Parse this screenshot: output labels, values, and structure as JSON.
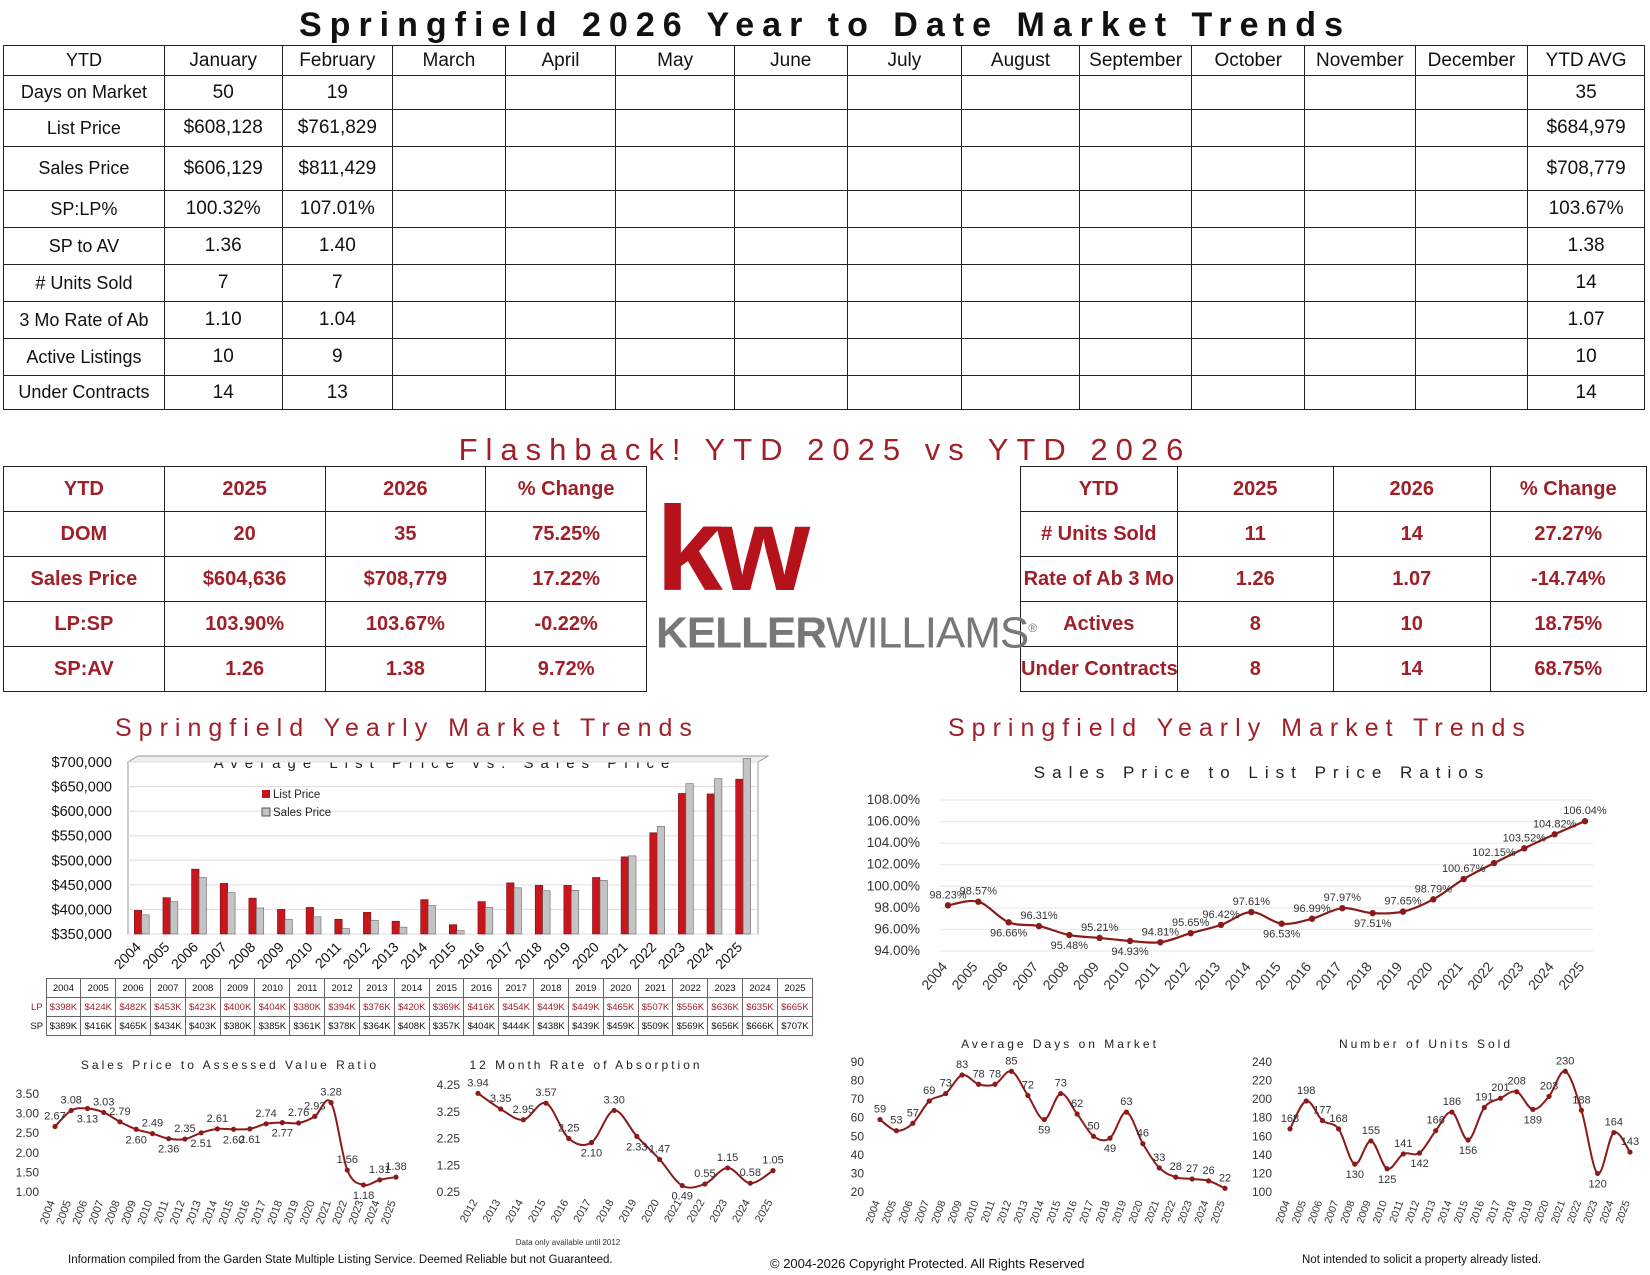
{
  "page_title": "Springfield 2026 Year to Date Market Trends",
  "ytd_table": {
    "columns": [
      "YTD",
      "January",
      "February",
      "March",
      "April",
      "May",
      "June",
      "July",
      "August",
      "September",
      "October",
      "November",
      "December",
      "YTD AVG"
    ],
    "rows": [
      [
        "Days on Market",
        "50",
        "19",
        "",
        "",
        "",
        "",
        "",
        "",
        "",
        "",
        "",
        "",
        "35"
      ],
      [
        "List Price",
        "$608,128",
        "$761,829",
        "",
        "",
        "",
        "",
        "",
        "",
        "",
        "",
        "",
        "",
        "$684,979"
      ],
      [
        "Sales Price",
        "$606,129",
        "$811,429",
        "",
        "",
        "",
        "",
        "",
        "",
        "",
        "",
        "",
        "",
        "$708,779"
      ],
      [
        "SP:LP%",
        "100.32%",
        "107.01%",
        "",
        "",
        "",
        "",
        "",
        "",
        "",
        "",
        "",
        "",
        "103.67%"
      ],
      [
        "SP to AV",
        "1.36",
        "1.40",
        "",
        "",
        "",
        "",
        "",
        "",
        "",
        "",
        "",
        "",
        "1.38"
      ],
      [
        "# Units Sold",
        "7",
        "7",
        "",
        "",
        "",
        "",
        "",
        "",
        "",
        "",
        "",
        "",
        "14"
      ],
      [
        "3 Mo Rate of Ab",
        "1.10",
        "1.04",
        "",
        "",
        "",
        "",
        "",
        "",
        "",
        "",
        "",
        "",
        "1.07"
      ],
      [
        "Active Listings",
        "10",
        "9",
        "",
        "",
        "",
        "",
        "",
        "",
        "",
        "",
        "",
        "",
        "10"
      ],
      [
        "Under Contracts",
        "14",
        "13",
        "",
        "",
        "",
        "",
        "",
        "",
        "",
        "",
        "",
        "",
        "14"
      ]
    ]
  },
  "flashback_title": "Flashback!  YTD 2025 vs YTD 2026",
  "compare_left": {
    "header": [
      "YTD",
      "2025",
      "2026",
      "% Change"
    ],
    "rows": [
      [
        "DOM",
        "20",
        "35",
        "75.25%"
      ],
      [
        "Sales Price",
        "$604,636",
        "$708,779",
        "17.22%"
      ],
      [
        "LP:SP",
        "103.90%",
        "103.67%",
        "-0.22%"
      ],
      [
        "SP:AV",
        "1.26",
        "1.38",
        "9.72%"
      ]
    ]
  },
  "compare_right": {
    "header": [
      "YTD",
      "2025",
      "2026",
      "% Change"
    ],
    "rows": [
      [
        "# Units Sold",
        "11",
        "14",
        "27.27%"
      ],
      [
        "Rate of Ab 3 Mo",
        "1.26",
        "1.07",
        "-14.74%"
      ],
      [
        "Actives",
        "8",
        "10",
        "18.75%"
      ],
      [
        "Under Contracts",
        "8",
        "14",
        "68.75%"
      ]
    ]
  },
  "logo": {
    "mark": "kw",
    "name_bold": "KELLER",
    "name_light": "WILLIAMS",
    "registered": "®"
  },
  "section_title_left": "Springfield Yearly Market Trends",
  "section_title_right": "Springfield Yearly Market Trends",
  "colors": {
    "accent": "#a0202a",
    "bar_list": "#c8161d",
    "bar_sales": "#c4c4c4",
    "line": "#8b1a1a"
  },
  "chart_data": [
    {
      "id": "price",
      "type": "bar",
      "title": "Average List Price vs. Sales Price",
      "categories": [
        "2004",
        "2005",
        "2006",
        "2007",
        "2008",
        "2009",
        "2010",
        "2011",
        "2012",
        "2013",
        "2014",
        "2015",
        "2016",
        "2017",
        "2018",
        "2019",
        "2020",
        "2021",
        "2022",
        "2023",
        "2024",
        "2025"
      ],
      "series": [
        {
          "name": "List Price",
          "values": [
            398,
            424,
            482,
            453,
            423,
            400,
            404,
            380,
            394,
            376,
            420,
            369,
            416,
            454,
            449,
            449,
            465,
            507,
            556,
            636,
            635,
            665
          ],
          "labels": [
            "$398K",
            "$424K",
            "$482K",
            "$453K",
            "$423K",
            "$400K",
            "$404K",
            "$380K",
            "$394K",
            "$376K",
            "$420K",
            "$369K",
            "$416K",
            "$454K",
            "$449K",
            "$449K",
            "$465K",
            "$507K",
            "$556K",
            "$636K",
            "$635K",
            "$665K"
          ]
        },
        {
          "name": "Sales Price",
          "values": [
            389,
            416,
            465,
            434,
            403,
            380,
            385,
            361,
            378,
            364,
            408,
            357,
            404,
            444,
            438,
            439,
            459,
            509,
            569,
            656,
            666,
            707
          ],
          "labels": [
            "$389K",
            "$416K",
            "$465K",
            "$434K",
            "$403K",
            "$380K",
            "$385K",
            "$361K",
            "$378K",
            "$364K",
            "$408K",
            "$357K",
            "$404K",
            "$444K",
            "$438K",
            "$439K",
            "$459K",
            "$509K",
            "$569K",
            "$656K",
            "$666K",
            "$707K"
          ]
        }
      ],
      "yticks": [
        "$700,000",
        "$650,000",
        "$600,000",
        "$550,000",
        "$500,000",
        "$450,000",
        "$400,000",
        "$350,000"
      ],
      "ylim": [
        350,
        700
      ],
      "table_row_labels": [
        "LP",
        "SP"
      ]
    },
    {
      "id": "ratio",
      "type": "line",
      "title": "Sales Price to List Price Ratios",
      "x": [
        "2004",
        "2005",
        "2006",
        "2007",
        "2008",
        "2009",
        "2010",
        "2011",
        "2012",
        "2013",
        "2014",
        "2015",
        "2016",
        "2017",
        "2018",
        "2019",
        "2020",
        "2021",
        "2022",
        "2023",
        "2024",
        "2025"
      ],
      "values": [
        98.23,
        98.57,
        96.66,
        96.31,
        95.48,
        95.21,
        94.93,
        94.81,
        95.65,
        96.42,
        97.61,
        96.53,
        96.99,
        97.97,
        97.51,
        97.65,
        98.79,
        100.67,
        102.15,
        103.52,
        104.82,
        106.04
      ],
      "labels": [
        "98.23%",
        "98.57%",
        "96.66%",
        "96.31%",
        "95.48%",
        "95.21%",
        "94.93%",
        "94.81%",
        "95.65%",
        "96.42%",
        "97.61%",
        "96.53%",
        "96.99%",
        "97.97%",
        "97.51%",
        "97.65%",
        "98.79%",
        "100.67%",
        "102.15%",
        "103.52%",
        "104.82%",
        "106.04%"
      ],
      "yticks": [
        "108.00%",
        "106.00%",
        "104.00%",
        "102.00%",
        "100.00%",
        "98.00%",
        "96.00%",
        "94.00%"
      ],
      "ylim": [
        94,
        108
      ]
    },
    {
      "id": "spav",
      "type": "line",
      "title": "Sales Price to Assessed Value Ratio",
      "x": [
        "2004",
        "2005",
        "2006",
        "2007",
        "2008",
        "2009",
        "2010",
        "2011",
        "2012",
        "2013",
        "2014",
        "2015",
        "2016",
        "2017",
        "2018",
        "2019",
        "2020",
        "2021",
        "2022",
        "2023",
        "2024",
        "2025"
      ],
      "values": [
        2.67,
        3.08,
        3.13,
        3.03,
        2.79,
        2.6,
        2.49,
        2.36,
        2.35,
        2.51,
        2.61,
        2.6,
        2.61,
        2.74,
        2.77,
        2.76,
        2.93,
        3.28,
        1.56,
        1.18,
        1.31,
        1.38
      ],
      "labels": [
        "2.67",
        "3.08",
        "3.13",
        "3.03",
        "2.79",
        "2.60",
        "2.49",
        "2.36",
        "2.35",
        "2.51",
        "2.61",
        "2.60",
        "2.61",
        "2.74",
        "2.77",
        "2.76",
        "2.93",
        "3.28",
        "1.56",
        "1.18",
        "1.31",
        "1.38"
      ],
      "yticks": [
        "3.50",
        "3.00",
        "2.50",
        "2.00",
        "1.50",
        "1.00"
      ],
      "ylim": [
        1,
        3.5
      ]
    },
    {
      "id": "absorb",
      "type": "line",
      "title": "12 Month Rate of Absorption",
      "x": [
        "2012",
        "2013",
        "2014",
        "2015",
        "2016",
        "2017",
        "2018",
        "2019",
        "2020",
        "2021",
        "2022",
        "2023",
        "2024",
        "2025"
      ],
      "values": [
        3.94,
        3.35,
        2.95,
        3.57,
        2.25,
        2.1,
        3.3,
        2.33,
        1.47,
        0.49,
        0.55,
        1.15,
        0.58,
        1.05
      ],
      "labels": [
        "3.94",
        "3.35",
        "2.95",
        "3.57",
        "2.25",
        "2.10",
        "3.30",
        "2.33",
        "1.47",
        "0.49",
        "0.55",
        "1.15",
        "0.58",
        "1.05"
      ],
      "yticks": [
        "4.25",
        "3.25",
        "2.25",
        "1.25",
        "0.25"
      ],
      "ylim": [
        0.25,
        4.25
      ],
      "note": "Data only available until 2012"
    },
    {
      "id": "dom",
      "type": "line",
      "title": "Average Days on Market",
      "x": [
        "2004",
        "2005",
        "2006",
        "2007",
        "2008",
        "2009",
        "2010",
        "2011",
        "2012",
        "2013",
        "2014",
        "2015",
        "2016",
        "2017",
        "2018",
        "2019",
        "2020",
        "2021",
        "2022",
        "2023",
        "2024",
        "2025"
      ],
      "values": [
        59,
        53,
        57,
        69,
        73,
        83,
        78,
        78,
        85,
        72,
        59,
        73,
        62,
        50,
        49,
        63,
        46,
        33,
        28,
        27,
        26,
        22
      ],
      "labels": [
        "59",
        "53",
        "57",
        "69",
        "73",
        "83",
        "78",
        "78",
        "85",
        "72",
        "59",
        "73",
        "62",
        "50",
        "49",
        "63",
        "46",
        "33",
        "28",
        "27",
        "26",
        "22"
      ],
      "yticks": [
        "90",
        "80",
        "70",
        "60",
        "50",
        "40",
        "30",
        "20"
      ],
      "ylim": [
        20,
        90
      ]
    },
    {
      "id": "units",
      "type": "line",
      "title": "Number of Units Sold",
      "x": [
        "2004",
        "2005",
        "2006",
        "2007",
        "2008",
        "2009",
        "2010",
        "2011",
        "2012",
        "2013",
        "2014",
        "2015",
        "2016",
        "2017",
        "2018",
        "2019",
        "2020",
        "2021",
        "2022",
        "2023",
        "2024",
        "2025"
      ],
      "values": [
        168,
        198,
        177,
        168,
        130,
        155,
        125,
        141,
        142,
        166,
        186,
        156,
        191,
        201,
        208,
        189,
        203,
        230,
        188,
        120,
        164,
        143
      ],
      "labels": [
        "168",
        "198",
        "177",
        "168",
        "130",
        "155",
        "125",
        "141",
        "142",
        "166",
        "186",
        "156",
        "191",
        "201",
        "208",
        "189",
        "203",
        "230",
        "188",
        "120",
        "164",
        "143"
      ],
      "yticks": [
        "240",
        "220",
        "200",
        "180",
        "160",
        "140",
        "120",
        "100"
      ],
      "ylim": [
        100,
        240
      ]
    }
  ],
  "footer_left": "Information compiled from the Garden State Multiple Listing Service.  Deemed Reliable but not Guaranteed.",
  "footer_center": "© 2004-2026 Copyright Protected.  All Rights Reserved",
  "footer_right": "Not intended to solicit a property already listed."
}
